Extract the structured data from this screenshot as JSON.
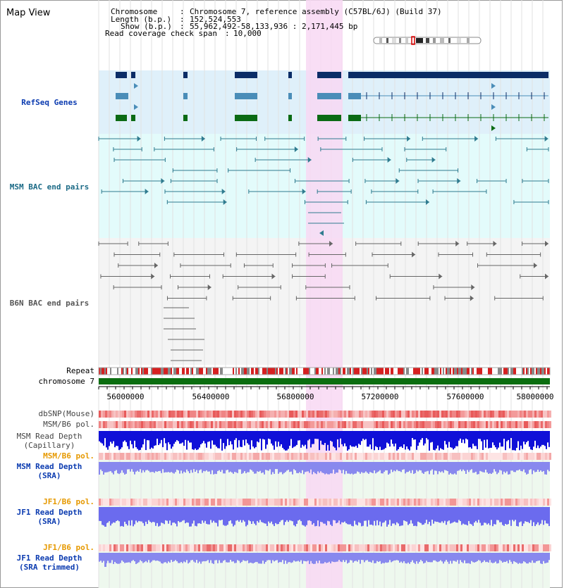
{
  "view": {
    "title": "Map View",
    "chromosome_label": "Chromosome",
    "chromosome_value": "Chromosome 7, reference assembly (C57BL/6J) (Build 37)",
    "length_label": "Length (b.p.)",
    "length_value": "152,524,553",
    "show_label": "Show (b.p.)",
    "show_value": "55,962,492-58,133,936 : 2,171,445 bp",
    "coverage_label": "Read coverage check span",
    "coverage_value": "10,000"
  },
  "tracks": {
    "refseq": "RefSeq Genes",
    "msm_bac": "MSM BAC end pairs",
    "b6n_bac": "B6N BAC end pairs",
    "repeat": "Repeat",
    "chromosome": "chromosome 7",
    "dbsnp": "dbSNP(Mouse)",
    "msm_b6_pol_1": "MSM/B6 pol.",
    "msm_depth_cap_1": "MSM Read Depth",
    "msm_depth_cap_2": "(Capillary)",
    "msm_b6_pol_2": "MSM/B6 pol.",
    "msm_depth_sra_1": "MSM Read Depth",
    "msm_depth_sra_2": "(SRA)",
    "jf1_b6_pol_1": "JF1/B6 pol.",
    "jf1_depth_sra_1": "JF1 Read Depth",
    "jf1_depth_sra_2": "(SRA)",
    "jf1_b6_pol_2": "JF1/B6 pol.",
    "jf1_depth_trim_1": "JF1 Read Depth",
    "jf1_depth_trim_2": "(SRA trimmed)"
  },
  "axis": {
    "ticks": [
      "56000000",
      "56400000",
      "56800000",
      "57200000",
      "57600000",
      "58000000"
    ]
  },
  "colors": {
    "refseq_bg": "#dff0fa",
    "msm_bg": "#e3fbfb",
    "b6n_bg": "#f4f4f4",
    "highlight": "#f8d8f3",
    "msm_bac": "#2f7b8f",
    "b6n_bac": "#666666",
    "gene_navy": "#0b2d67",
    "gene_blue": "#4a8db8",
    "gene_green": "#0b6b14",
    "chromosome_bar": "#0b6e10",
    "depth_blue": "#1010d8",
    "depth_light": "#8888ee",
    "pol_red": "#f08080",
    "label_blue": "#0b3bb0",
    "label_teal": "#1b6a86",
    "label_orange": "#e69900"
  }
}
